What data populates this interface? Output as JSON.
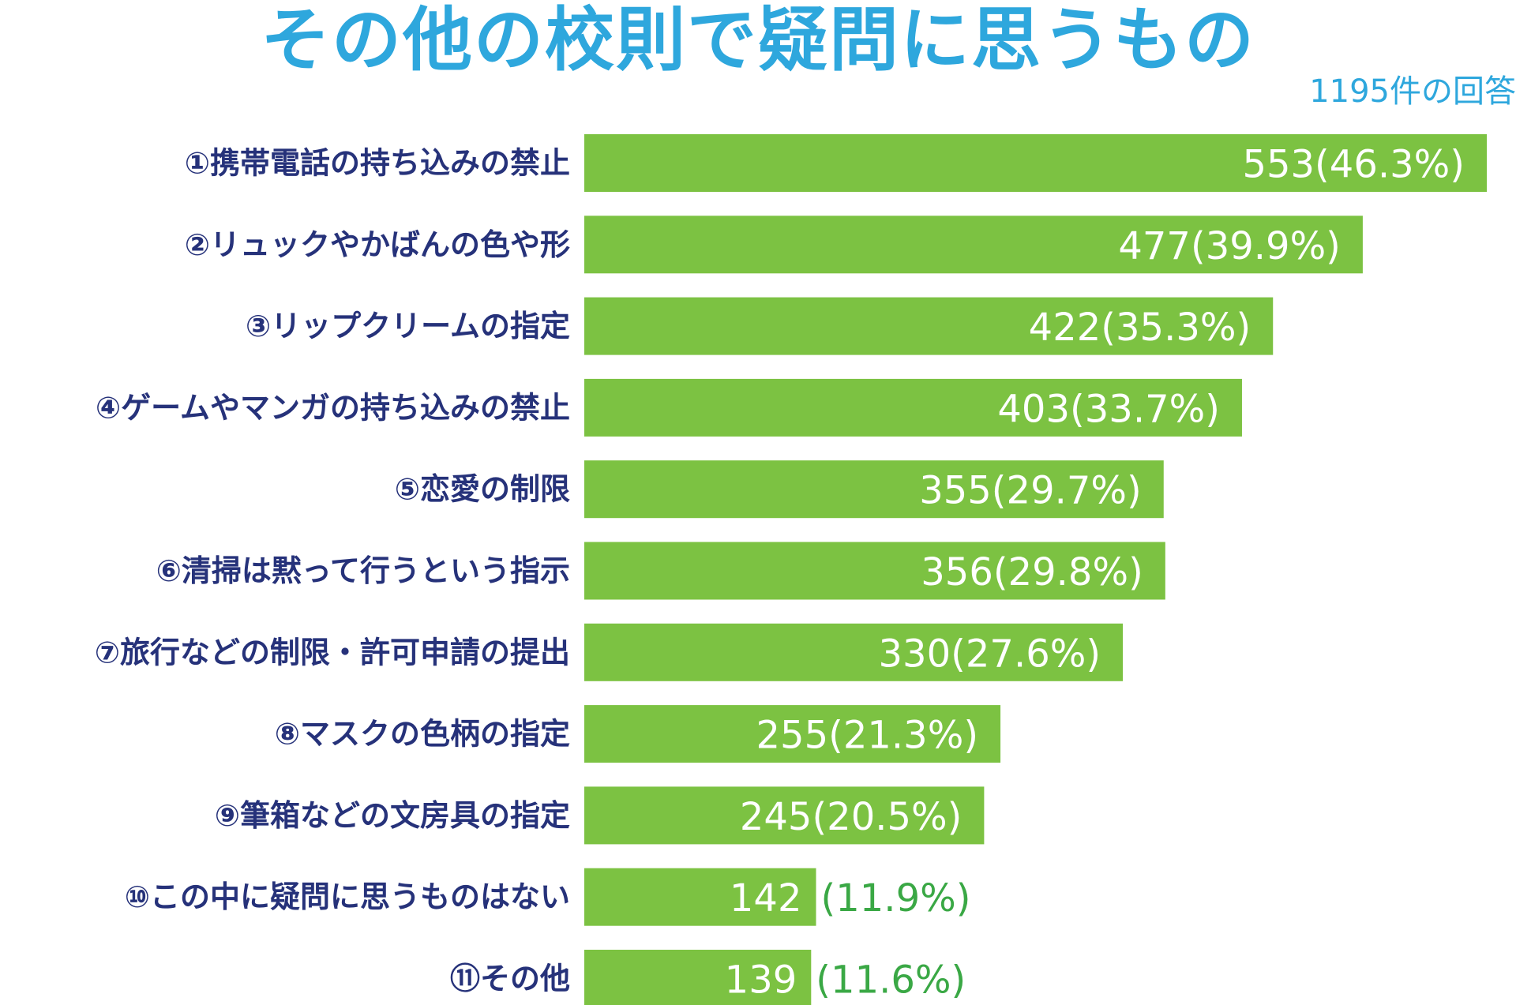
{
  "colors": {
    "title": "#2ea7dd",
    "bar": "#7cc242",
    "label": "#26327a",
    "value_inside": "#ffffff",
    "value_outside": "#3aa845"
  },
  "chart_data": {
    "type": "bar",
    "orientation": "horizontal",
    "title": "その他の校則で疑問に思うもの",
    "subtitle": "1195件の回答",
    "categories": [
      "①携帯電話の持ち込みの禁止",
      "②リュックやかばんの色や形",
      "③リップクリームの指定",
      "④ゲームやマンガの持ち込みの禁止",
      "⑤恋愛の制限",
      "⑥清掃は黙って行うという指示",
      "⑦旅行などの制限・許可申請の提出",
      "⑧マスクの色柄の指定",
      "⑨筆箱などの文房具の指定",
      "⑩この中に疑問に思うものはない",
      "⑪その他"
    ],
    "values": [
      553,
      477,
      422,
      403,
      355,
      356,
      330,
      255,
      245,
      142,
      139
    ],
    "percent_labels": [
      "(46.3%)",
      "(39.9%)",
      "(35.3%)",
      "(33.7%)",
      "(29.7%)",
      "(29.8%)",
      "(27.6%)",
      "(21.3%)",
      "(20.5%)",
      "(11.9%)",
      "(11.6%)"
    ],
    "xlim": [
      0,
      553
    ],
    "grid": false,
    "legend": "none"
  }
}
